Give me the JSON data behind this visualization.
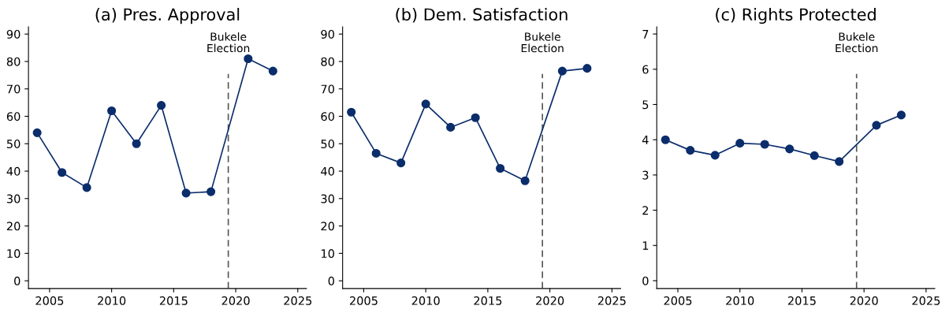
{
  "chart_data": [
    {
      "type": "line",
      "title": "(a) Pres. Approval",
      "x": [
        2004,
        2006,
        2008,
        2010,
        2012,
        2014,
        2016,
        2018,
        2021,
        2023
      ],
      "series": [
        {
          "color": "#0b2d6b",
          "values": [
            54,
            39.5,
            34,
            62,
            50,
            64,
            32,
            32.5,
            81,
            76.5
          ]
        }
      ],
      "xlim": [
        2003.3,
        2025.7
      ],
      "xticks": [
        2005,
        2010,
        2015,
        2020,
        2025
      ],
      "ylim": [
        -2.8,
        92.6
      ],
      "yticks": [
        0,
        10,
        20,
        30,
        40,
        50,
        60,
        70,
        80,
        90
      ],
      "ref_lines": [
        {
          "axis": "x",
          "value": 2019.4,
          "label": "Bukele\nElection",
          "color": "#555555",
          "line_style": "dashed"
        }
      ],
      "marker": "circle",
      "grid": false,
      "legend": false
    },
    {
      "type": "line",
      "title": "(b) Dem. Satisfaction",
      "x": [
        2004,
        2006,
        2008,
        2010,
        2012,
        2014,
        2016,
        2018,
        2021,
        2023
      ],
      "series": [
        {
          "color": "#0b2d6b",
          "values": [
            61.5,
            46.5,
            43,
            64.5,
            56,
            59.5,
            41,
            36.5,
            76.5,
            77.5
          ]
        }
      ],
      "xlim": [
        2003.3,
        2025.7
      ],
      "xticks": [
        2005,
        2010,
        2015,
        2020,
        2025
      ],
      "ylim": [
        -2.8,
        92.6
      ],
      "yticks": [
        0,
        10,
        20,
        30,
        40,
        50,
        60,
        70,
        80,
        90
      ],
      "ref_lines": [
        {
          "axis": "x",
          "value": 2019.4,
          "label": "Bukele\nElection",
          "color": "#555555",
          "line_style": "dashed"
        }
      ],
      "marker": "circle",
      "grid": false,
      "legend": false
    },
    {
      "type": "line",
      "title": "(c) Rights Protected",
      "x": [
        2004,
        2006,
        2008,
        2010,
        2012,
        2014,
        2016,
        2018,
        2021,
        2023
      ],
      "series": [
        {
          "color": "#0b2d6b",
          "values": [
            4.0,
            3.7,
            3.56,
            3.9,
            3.87,
            3.74,
            3.55,
            3.38,
            4.41,
            4.7
          ]
        }
      ],
      "xlim": [
        2003.3,
        2025.7
      ],
      "xticks": [
        2005,
        2010,
        2015,
        2020,
        2025
      ],
      "ylim": [
        -0.22,
        7.2
      ],
      "yticks": [
        0,
        1,
        2,
        3,
        4,
        5,
        6,
        7
      ],
      "ref_lines": [
        {
          "axis": "x",
          "value": 2019.4,
          "label": "Bukele\nElection",
          "color": "#555555",
          "line_style": "dashed"
        }
      ],
      "marker": "circle",
      "grid": false,
      "legend": false
    }
  ]
}
